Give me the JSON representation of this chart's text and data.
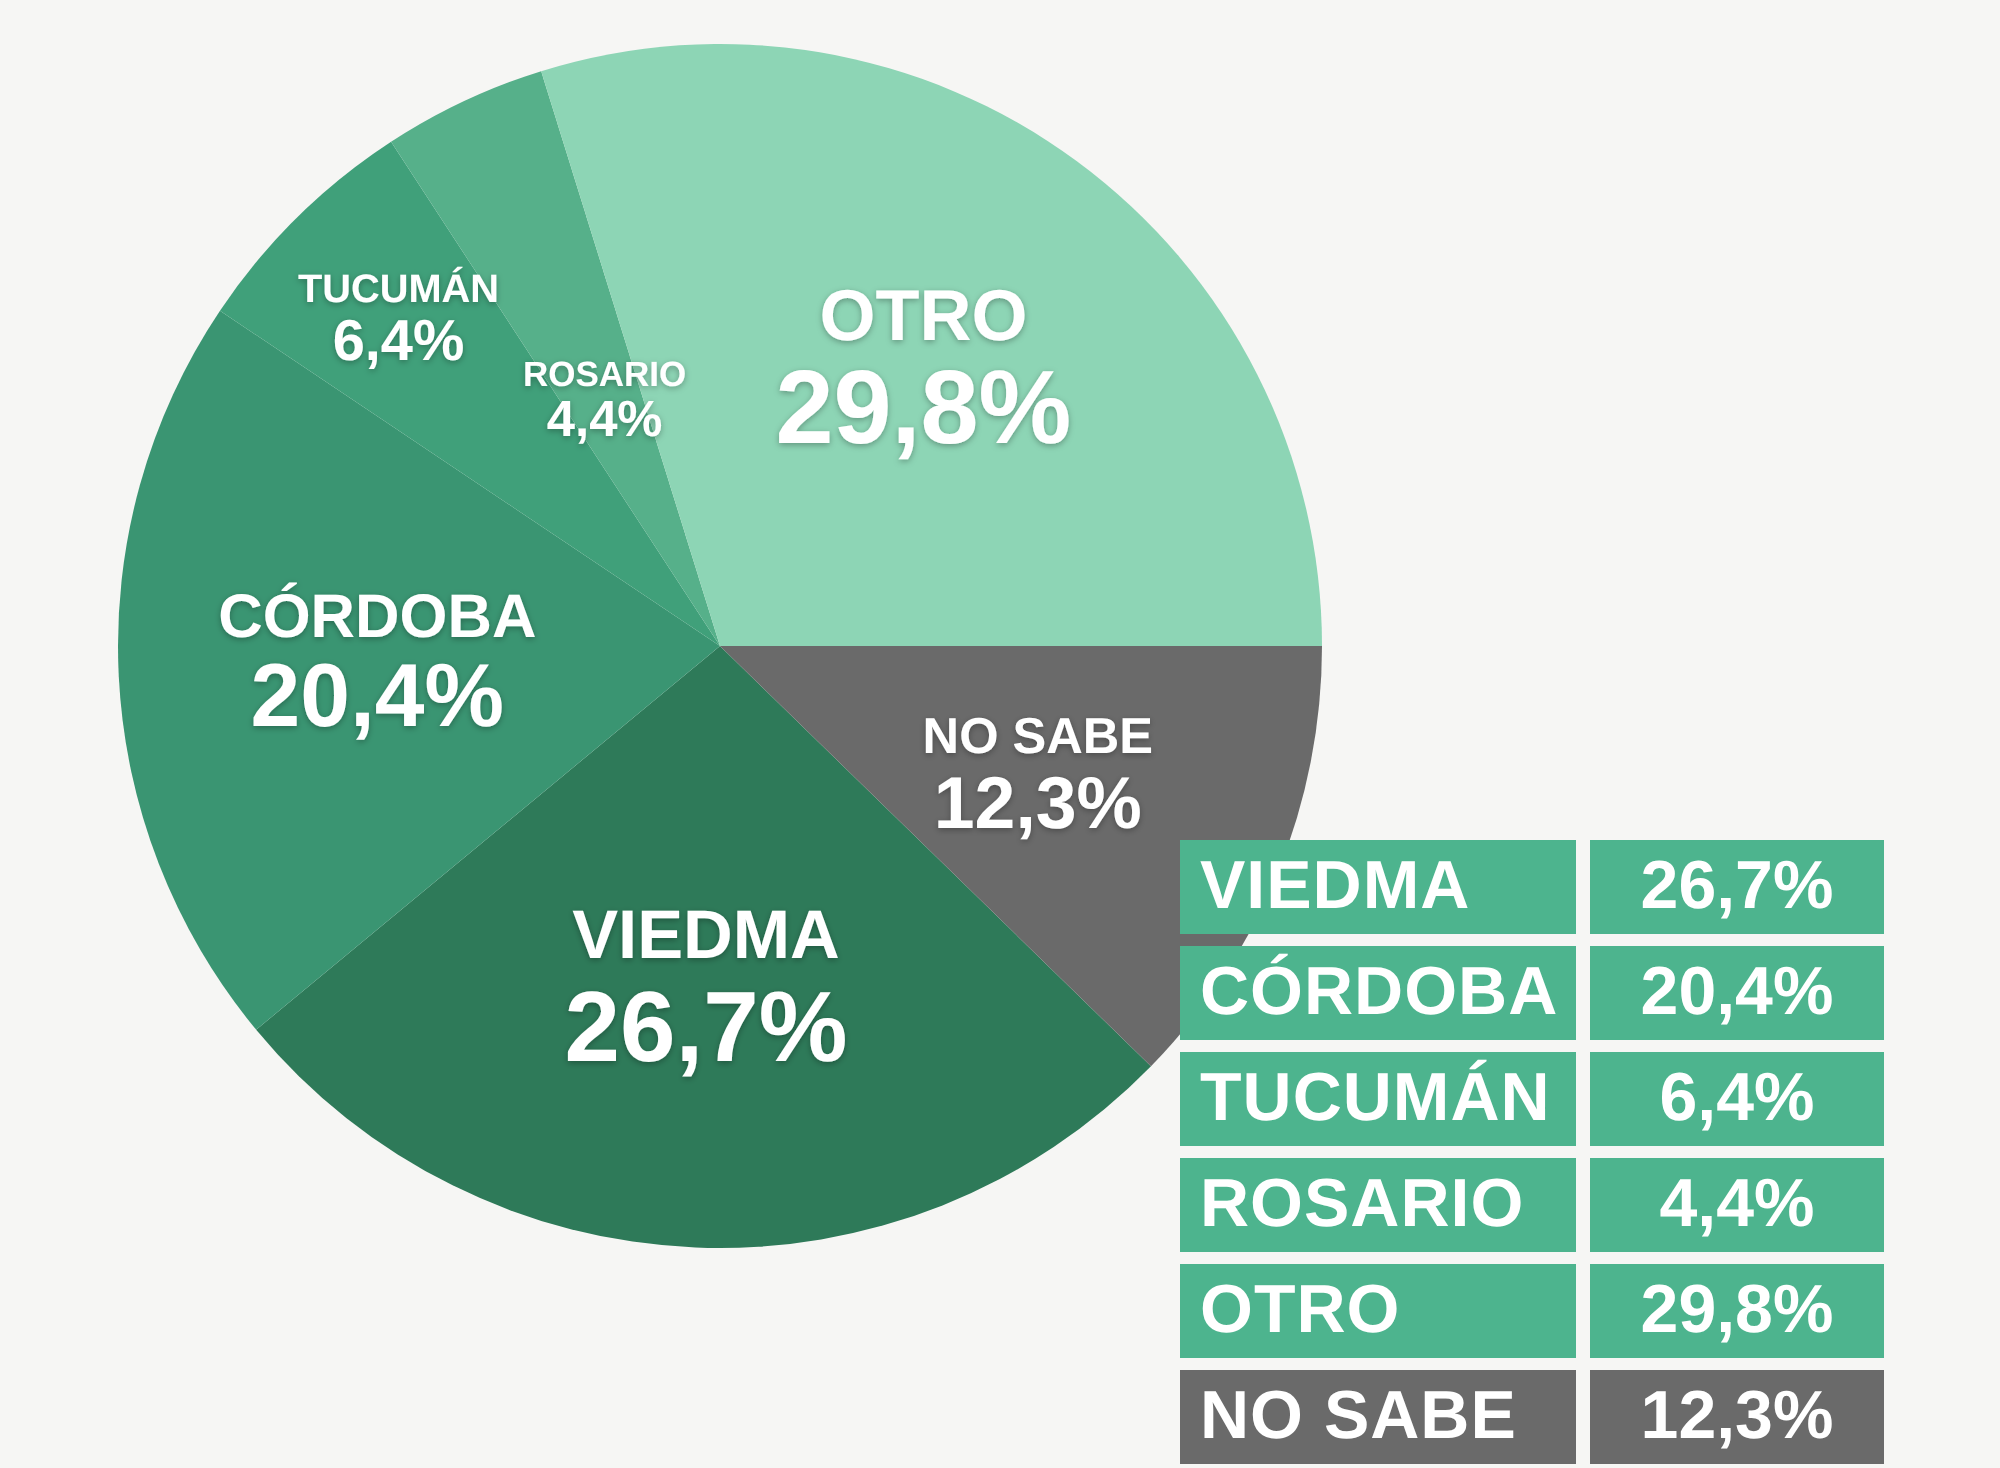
{
  "chart_data": {
    "type": "pie",
    "categories": [
      "VIEDMA",
      "CÓRDOBA",
      "TUCUMÁN",
      "ROSARIO",
      "OTRO",
      "NO SABE"
    ],
    "values": [
      26.7,
      20.4,
      6.4,
      4.4,
      29.8,
      12.3
    ],
    "colors": [
      "#2e7a59",
      "#3a9572",
      "#40a07a",
      "#56b08a",
      "#8dd5b5",
      "#6a6a6a"
    ],
    "value_labels": [
      "26,7%",
      "20,4%",
      "6,4%",
      "4,4%",
      "29,8%",
      "12,3%"
    ],
    "legend": "bottom right"
  }
}
